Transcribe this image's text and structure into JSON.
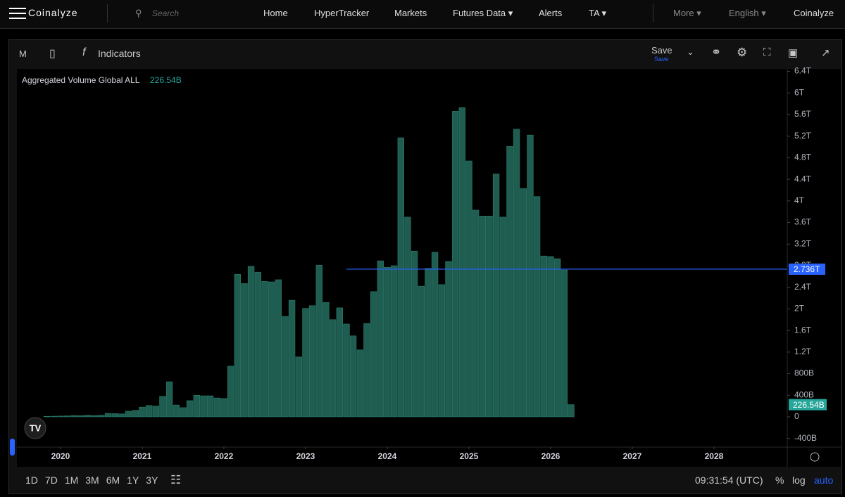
{
  "nav": {
    "logo": "Coinalyze",
    "search": "Search",
    "items": [
      "Home",
      "HyperTracker",
      "Markets",
      "Futures Data ▾",
      "Alerts",
      "TA ▾"
    ],
    "right": [
      "More ▾",
      "English ▾",
      "Coinalyze"
    ]
  },
  "toolbar": {
    "interval": "M",
    "indicators": "Indicators",
    "save": "Save",
    "save_sub": "Save"
  },
  "bottom": {
    "ranges": [
      "1D",
      "7D",
      "1M",
      "3M",
      "6M",
      "1Y",
      "3Y"
    ],
    "time": "09:31:54 (UTC)",
    "options": [
      "%",
      "log",
      "auto"
    ]
  },
  "chart_data": {
    "type": "bar",
    "title": "Aggregated Volume Global ALL",
    "grid": false,
    "series": [
      {
        "name": "Aggregated Volume Global ALL",
        "color": "#1f5d51",
        "x": [
          2019.833,
          2019.917,
          2020,
          2020.083,
          2020.167,
          2020.25,
          2020.333,
          2020.417,
          2020.5,
          2020.583,
          2020.667,
          2020.75,
          2020.833,
          2020.917,
          2021,
          2021.083,
          2021.167,
          2021.25,
          2021.333,
          2021.417,
          2021.5,
          2021.583,
          2021.667,
          2021.75,
          2021.833,
          2021.917,
          2022,
          2022.083,
          2022.167,
          2022.25,
          2022.333,
          2022.417,
          2022.5,
          2022.583,
          2022.667,
          2022.75,
          2022.833,
          2022.917,
          2023,
          2023.083,
          2023.167,
          2023.25,
          2023.333,
          2023.417,
          2023.5,
          2023.583,
          2023.667,
          2023.75,
          2023.833,
          2023.917,
          2024,
          2024.083,
          2024.167,
          2024.25,
          2024.333,
          2024.417,
          2024.5,
          2024.583,
          2024.667,
          2024.75,
          2024.833,
          2024.917,
          2025,
          2025.083,
          2025.167,
          2025.25,
          2025.333,
          2025.417,
          2025.5,
          2025.583,
          2025.667,
          2025.75,
          2025.833,
          2025.917,
          2026,
          2026.083,
          2026.167,
          2026.25
        ],
        "values": [
          10,
          12,
          15,
          18,
          25,
          22,
          30,
          25,
          30,
          65,
          60,
          55,
          105,
          120,
          180,
          210,
          200,
          380,
          650,
          220,
          170,
          300,
          400,
          390,
          390,
          350,
          340,
          940,
          2640,
          2470,
          2790,
          2680,
          2510,
          2500,
          2540,
          1860,
          2160,
          1110,
          2010,
          2060,
          2810,
          2120,
          1800,
          2020,
          1720,
          1500,
          1240,
          1730,
          2320,
          2890,
          2770,
          2800,
          5170,
          3700,
          3070,
          2420,
          2750,
          3050,
          2450,
          2880,
          5660,
          5730,
          4740,
          3830,
          3720,
          3720,
          4500,
          3700,
          5010,
          5330,
          4230,
          5220,
          4080,
          2980,
          2970,
          2930,
          2720,
          226.54
        ],
        "value_labels": [
          null,
          null,
          null,
          null,
          null,
          null,
          null,
          null,
          null,
          null,
          null,
          null,
          null,
          null,
          null,
          null,
          null,
          null,
          null,
          null,
          null,
          null,
          null,
          null,
          null,
          null,
          null,
          null,
          null,
          null,
          null,
          null,
          null,
          null,
          null,
          null,
          null,
          null,
          null,
          null,
          null,
          null,
          null,
          null,
          null,
          null,
          null,
          null,
          null,
          null,
          null,
          null,
          null,
          null,
          null,
          null,
          null,
          null,
          null,
          null,
          null,
          null,
          null,
          null,
          null,
          null,
          null,
          null,
          null,
          null,
          null,
          null,
          null,
          null,
          null,
          null,
          null,
          "226.54B"
        ]
      }
    ],
    "xlim": [
      2019.466,
      2028.897
    ],
    "xticks": [
      2020,
      2021,
      2022,
      2023,
      2024,
      2025,
      2026,
      2027,
      2028
    ],
    "ylim": [
      -560,
      6420
    ],
    "yticks": [
      {
        "value": -400,
        "label": "-400B"
      },
      0,
      {
        "value": 400,
        "label": "400B"
      },
      {
        "value": 800,
        "label": "800B"
      },
      {
        "value": 1200,
        "label": "1.2T"
      },
      {
        "value": 1600,
        "label": "1.6T"
      },
      {
        "value": 2000,
        "label": "2T"
      },
      {
        "value": 2400,
        "label": "2.4T"
      },
      {
        "value": 2800,
        "label": "2.8T"
      },
      {
        "value": 3200,
        "label": "3.2T"
      },
      {
        "value": 3600,
        "label": "3.6T"
      },
      {
        "value": 4000,
        "label": "4T"
      },
      {
        "value": 4400,
        "label": "4.4T"
      },
      {
        "value": 4800,
        "label": "4.8T"
      },
      {
        "value": 5200,
        "label": "5.2T"
      },
      {
        "value": 5600,
        "label": "5.6T"
      },
      {
        "value": 6000,
        "label": "6T"
      },
      {
        "value": 6400,
        "label": "6.4T"
      }
    ],
    "hline": {
      "value": 2736,
      "label": "2.736T",
      "x0": 2023.5,
      "color": "#2962ff"
    }
  }
}
